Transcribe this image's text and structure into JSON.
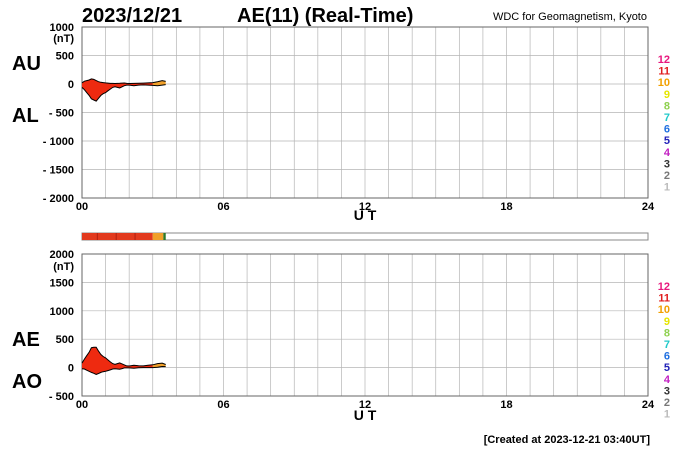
{
  "header": {
    "date": "2023/12/21",
    "title": "AE(11) (Real-Time)",
    "source": "WDC for Geomagnetism, Kyoto"
  },
  "footer": {
    "created": "[Created at 2023-12-21 03:40UT]"
  },
  "station_scale": {
    "labels": [
      "12",
      "11",
      "10",
      "9",
      "8",
      "7",
      "6",
      "5",
      "4",
      "3",
      "2",
      "1"
    ],
    "colors": [
      "#e8177e",
      "#e11e1e",
      "#f2a000",
      "#e6e600",
      "#8fd14f",
      "#21c9c9",
      "#1f6fe0",
      "#1f1fb8",
      "#c21fc2",
      "#333333",
      "#777777",
      "#bbbbbb"
    ]
  },
  "chart_data": [
    {
      "type": "area",
      "panel": "AU/AL",
      "series_labels": [
        "AU",
        "AL"
      ],
      "unit": "(nT)",
      "xlabel": "U T",
      "x_ticks": [
        "00",
        "06",
        "12",
        "18",
        "24"
      ],
      "xlim": [
        0,
        24
      ],
      "ylim": [
        -2000,
        1000
      ],
      "y_ticks": [
        "1000",
        "500",
        "0",
        "- 500",
        "- 1000",
        "- 1500",
        "- 2000"
      ],
      "y_tick_values": [
        1000,
        500,
        0,
        -500,
        -1000,
        -1500,
        -2000
      ],
      "grid": true,
      "x": [
        0,
        0.1,
        0.2,
        0.3,
        0.4,
        0.5,
        0.6,
        0.7,
        0.8,
        0.9,
        1.0,
        1.1,
        1.2,
        1.3,
        1.4,
        1.5,
        1.6,
        1.7,
        1.8,
        1.9,
        2.0,
        2.2,
        2.4,
        2.6,
        2.8,
        3.0,
        3.2,
        3.4,
        3.55
      ],
      "au": [
        20,
        50,
        60,
        70,
        90,
        80,
        60,
        40,
        30,
        25,
        20,
        15,
        10,
        10,
        8,
        10,
        12,
        15,
        18,
        10,
        8,
        10,
        12,
        15,
        20,
        25,
        40,
        60,
        45
      ],
      "al": [
        -60,
        -100,
        -150,
        -200,
        -260,
        -280,
        -300,
        -250,
        -200,
        -170,
        -150,
        -120,
        -90,
        -60,
        -50,
        -60,
        -70,
        -50,
        -30,
        -20,
        -20,
        -30,
        -20,
        -15,
        -20,
        -25,
        -30,
        -20,
        -10
      ],
      "colored_until": 3.0,
      "end": 3.55
    },
    {
      "type": "area",
      "panel": "AE/AO",
      "series_labels": [
        "AE",
        "AO"
      ],
      "unit": "(nT)",
      "xlabel": "U T",
      "x_ticks": [
        "00",
        "06",
        "12",
        "18",
        "24"
      ],
      "xlim": [
        0,
        24
      ],
      "ylim": [
        -500,
        2000
      ],
      "y_ticks": [
        "2000",
        "1500",
        "1000",
        "500",
        "0",
        "- 500"
      ],
      "y_tick_values": [
        2000,
        1500,
        1000,
        500,
        0,
        -500
      ],
      "grid": true,
      "x": [
        0,
        0.1,
        0.2,
        0.3,
        0.4,
        0.5,
        0.6,
        0.7,
        0.8,
        0.9,
        1.0,
        1.1,
        1.2,
        1.3,
        1.4,
        1.5,
        1.6,
        1.7,
        1.8,
        1.9,
        2.0,
        2.2,
        2.4,
        2.6,
        2.8,
        3.0,
        3.2,
        3.4,
        3.55
      ],
      "ae": [
        80,
        150,
        210,
        270,
        350,
        360,
        360,
        290,
        230,
        195,
        170,
        135,
        100,
        70,
        58,
        70,
        82,
        65,
        48,
        30,
        28,
        40,
        32,
        30,
        40,
        50,
        70,
        80,
        55
      ],
      "ao": [
        -20,
        -25,
        -45,
        -65,
        -85,
        -100,
        -120,
        -105,
        -85,
        -72,
        -65,
        -52,
        -40,
        -25,
        -21,
        -25,
        -29,
        -18,
        -6,
        -5,
        -6,
        -10,
        -4,
        0,
        0,
        0,
        5,
        20,
        18
      ],
      "colored_until": 3.0,
      "end": 3.55
    }
  ],
  "status_bar": {
    "segments": [
      {
        "from": 0,
        "to": 3.0,
        "color": "#e23a1e"
      },
      {
        "from": 3.0,
        "to": 3.45,
        "color": "#f0a02a"
      },
      {
        "from": 3.45,
        "to": 3.55,
        "color": "#2a7a2a"
      }
    ],
    "tick_hours": [
      0.65,
      1.45,
      2.25
    ]
  },
  "colors": {
    "fill_main": "#ee2a10",
    "fill_late": "#f0a02a",
    "grid": "#b5b5b5",
    "outline": "#000000"
  }
}
